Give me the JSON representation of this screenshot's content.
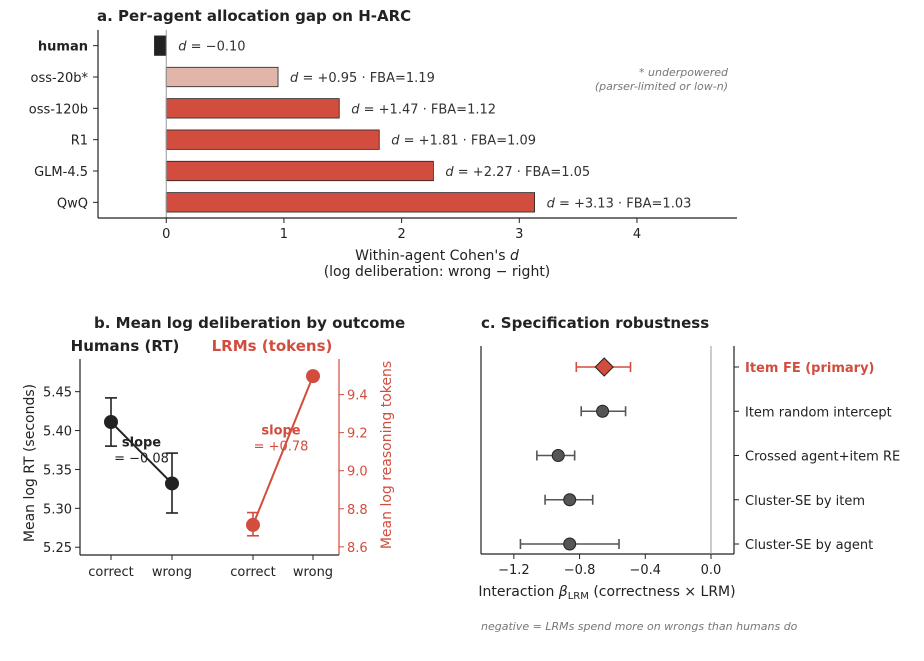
{
  "chart_data": [
    {
      "panel": "a",
      "type": "bar",
      "orientation": "horizontal",
      "title": "a.  Per-agent allocation gap on H-ARC",
      "xlabel_line1_prefix": "Within-agent Cohen's ",
      "xlabel_line1_var": "d",
      "xlabel_line2": "(log deliberation: wrong − right)",
      "xlim": [
        -0.58,
        4.85
      ],
      "xticks": [
        0,
        1,
        2,
        3,
        4
      ],
      "categories": [
        "human",
        "oss-20b*",
        "oss-120b",
        "R1",
        "GLM-4.5",
        "QwQ"
      ],
      "values": [
        -0.1,
        0.95,
        1.47,
        1.81,
        2.27,
        3.13
      ],
      "d_labels": [
        "d = −0.10",
        "d = +0.95",
        "d = +1.47",
        "d = +1.81",
        "d = +2.27",
        "d = +3.13"
      ],
      "fba_labels": [
        "",
        "FBA=1.19",
        "FBA=1.12",
        "FBA=1.09",
        "FBA=1.05",
        "FBA=1.03"
      ],
      "bar_colors": [
        "#222222",
        "#e2b5ab",
        "#d24d3e",
        "#d24d3e",
        "#d24d3e",
        "#d24d3e"
      ],
      "bold_category": "human",
      "note_lines": [
        "* underpowered",
        "(parser-limited or low-n)"
      ]
    },
    {
      "panel": "b",
      "type": "line",
      "title": "b.  Mean log deliberation by outcome",
      "x_categories": [
        "correct",
        "wrong"
      ],
      "humans": {
        "name": "Humans (RT)",
        "color": "#222222",
        "ylabel": "Mean log RT (seconds)",
        "ylim": [
          5.24,
          5.492
        ],
        "yticks": [
          "5.25",
          "5.30",
          "5.35",
          "5.40",
          "5.45"
        ],
        "ytick_values": [
          5.25,
          5.3,
          5.35,
          5.4,
          5.45
        ],
        "values": [
          5.411,
          5.332
        ],
        "errors": [
          [
            5.38,
            5.442
          ],
          [
            5.294,
            5.371
          ]
        ],
        "slope_title": "slope",
        "slope_value": "= −0.08"
      },
      "lrms": {
        "name": "LRMs (tokens)",
        "color": "#d24d3e",
        "ylabel": "Mean log reasoning tokens",
        "ylim": [
          8.557,
          9.587
        ],
        "yticks": [
          "8.6",
          "8.8",
          "9.0",
          "9.2",
          "9.4"
        ],
        "ytick_values": [
          8.6,
          8.8,
          9.0,
          9.2,
          9.4
        ],
        "values": [
          8.715,
          9.497
        ],
        "errors": [
          [
            8.658,
            8.78
          ],
          [
            9.497,
            9.497
          ]
        ],
        "slope_title": "slope",
        "slope_value": "= +0.78"
      }
    },
    {
      "panel": "c",
      "type": "scatter",
      "title": "c.  Specification robustness",
      "xlabel_prefix": "Interaction ",
      "xlabel_beta": "β",
      "xlabel_sub": "LRM",
      "xlabel_suffix": " (correctness × LRM)",
      "xlim": [
        -1.4,
        0.14
      ],
      "xticks": [
        "−1.2",
        "−0.8",
        "−0.4",
        "0.0"
      ],
      "xtick_values": [
        -1.2,
        -0.8,
        -0.4,
        0.0
      ],
      "specs": [
        {
          "label": "Item FE (primary)",
          "est": -0.65,
          "lo": -0.82,
          "hi": -0.49,
          "primary": true
        },
        {
          "label": "Item random intercept",
          "est": -0.66,
          "lo": -0.79,
          "hi": -0.52,
          "primary": false
        },
        {
          "label": "Crossed agent+item RE",
          "est": -0.93,
          "lo": -1.06,
          "hi": -0.83,
          "primary": false
        },
        {
          "label": "Cluster-SE by item",
          "est": -0.86,
          "lo": -1.01,
          "hi": -0.72,
          "primary": false
        },
        {
          "label": "Cluster-SE by agent",
          "est": -0.86,
          "lo": -1.16,
          "hi": -0.56,
          "primary": false
        }
      ],
      "primary_color": "#d24d3e",
      "point_color": "#555555",
      "footnote": "negative  =  LRMs spend more on wrongs than humans do"
    }
  ]
}
